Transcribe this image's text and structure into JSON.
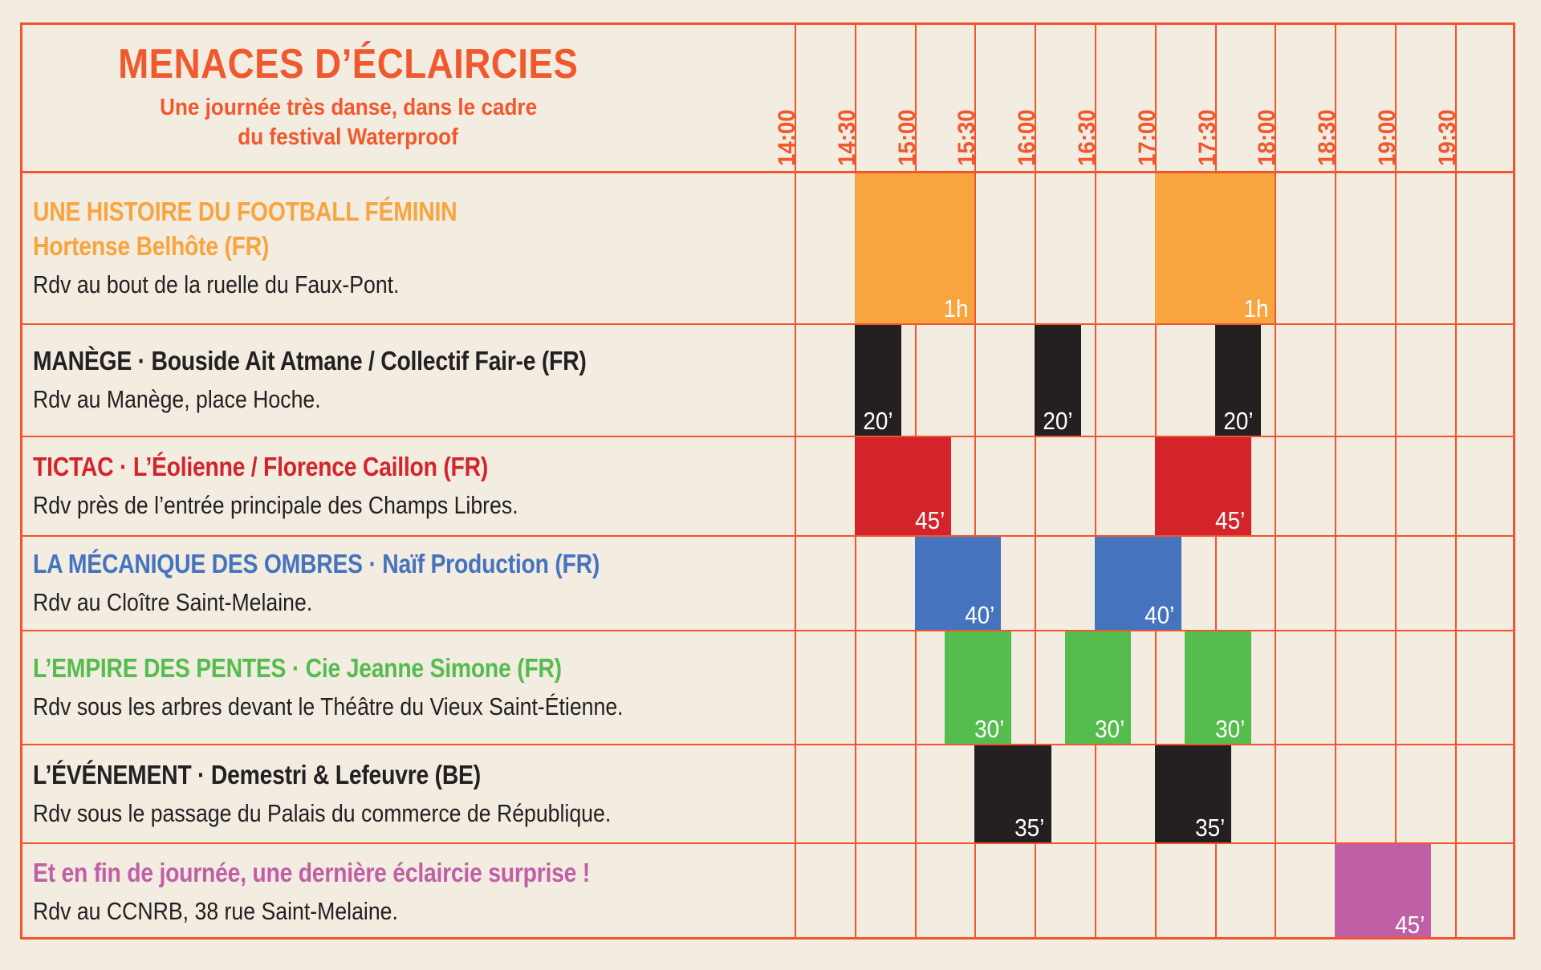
{
  "header": {
    "title": "MENACES D’ÉCLAIRCIES",
    "subtitle_lines": [
      "Une journée très danse, dans le cadre",
      "du festival Waterproof"
    ],
    "times": [
      "14:00",
      "14:30",
      "15:00",
      "15:30",
      "16:00",
      "16:30",
      "17:00",
      "17:30",
      "18:00",
      "18:30",
      "19:00",
      "19:30"
    ]
  },
  "colors": {
    "background": "#F2ECE1",
    "grid": "#F3542C",
    "accent_text": "#F1582D",
    "orange": "#F8A43F",
    "black": "#241F21",
    "red": "#D4242B",
    "blue": "#4673BE",
    "green": "#55BD4E",
    "purple": "#C15FA6",
    "bar_label": "#FFFFFF"
  },
  "rows": [
    {
      "title": "UNE HISTOIRE DU FOOTBALL FÉMININ",
      "title_line2": "Hortense Belhôte (FR)",
      "description": "Rdv au bout de la ruelle du Faux-Pont.",
      "color": "#F8A43F",
      "title_colored": true,
      "events": [
        {
          "start": "14:30",
          "duration_min": 60,
          "label": "1h"
        },
        {
          "start": "17:00",
          "duration_min": 60,
          "label": "1h"
        }
      ]
    },
    {
      "title": "MANÈGE · Bouside Ait Atmane / Collectif Fair-e (FR)",
      "description": "Rdv au Manège, place Hoche.",
      "color": "#241F21",
      "title_colored": true,
      "events": [
        {
          "start": "14:30",
          "duration_min": 20,
          "label": "20’"
        },
        {
          "start": "16:00",
          "duration_min": 20,
          "label": "20’"
        },
        {
          "start": "17:30",
          "duration_min": 20,
          "label": "20’"
        }
      ]
    },
    {
      "title": "TICTAC · L’Éolienne / Florence Caillon (FR)",
      "description": "Rdv près de l’entrée principale des Champs Libres.",
      "color": "#D4242B",
      "title_colored": true,
      "events": [
        {
          "start": "14:30",
          "duration_min": 45,
          "label": "45’"
        },
        {
          "start": "17:00",
          "duration_min": 45,
          "label": "45’"
        }
      ]
    },
    {
      "title": "LA MÉCANIQUE DES OMBRES · Naïf Production (FR)",
      "description": "Rdv au Cloître Saint-Melaine.",
      "color": "#4673BE",
      "title_colored": true,
      "events": [
        {
          "start": "15:00",
          "duration_min": 40,
          "label": "40’"
        },
        {
          "start": "16:30",
          "duration_min": 40,
          "label": "40’"
        }
      ]
    },
    {
      "title": "L’EMPIRE DES PENTES · Cie Jeanne Simone (FR)",
      "description": "Rdv sous les arbres devant le Théâtre du Vieux Saint-Étienne.",
      "color": "#55BD4E",
      "title_colored": true,
      "events": [
        {
          "start": "15:15",
          "duration_min": 30,
          "label": "30’"
        },
        {
          "start": "16:15",
          "duration_min": 30,
          "label": "30’"
        },
        {
          "start": "17:15",
          "duration_min": 30,
          "label": "30’"
        }
      ]
    },
    {
      "title": "L’ÉVÉNEMENT · Demestri & Lefeuvre (BE)",
      "description": "Rdv sous le passage du Palais du commerce de République.",
      "color": "#241F21",
      "title_colored": true,
      "events": [
        {
          "start": "15:30",
          "duration_min": 35,
          "label": "35’"
        },
        {
          "start": "17:00",
          "duration_min": 35,
          "label": "35’"
        }
      ]
    },
    {
      "title": "Et en fin de journée, une dernière éclaircie surprise !",
      "description": "Rdv au CCNRB, 38 rue Saint-Melaine.",
      "color": "#C15FA6",
      "title_colored": true,
      "events": [
        {
          "start": "18:30",
          "duration_min": 45,
          "label": "45’"
        }
      ]
    }
  ],
  "chart_data": {
    "type": "table",
    "title": "MENACES D’ÉCLAIRCIES",
    "subtitle": "Une journée très danse, dans le cadre du festival Waterproof",
    "x_axis": {
      "label": "time",
      "ticks": [
        "14:00",
        "14:30",
        "15:00",
        "15:30",
        "16:00",
        "16:30",
        "17:00",
        "17:30",
        "18:00",
        "18:30",
        "19:00",
        "19:30"
      ]
    },
    "rows": [
      {
        "show": "UNE HISTOIRE DU FOOTBALL FÉMININ — Hortense Belhôte (FR)",
        "meeting_point": "Rdv au bout de la ruelle du Faux-Pont.",
        "performances": [
          {
            "start": "14:30",
            "duration": "1h"
          },
          {
            "start": "17:00",
            "duration": "1h"
          }
        ]
      },
      {
        "show": "MANÈGE · Bouside Ait Atmane / Collectif Fair-e (FR)",
        "meeting_point": "Rdv au Manège, place Hoche.",
        "performances": [
          {
            "start": "14:30",
            "duration": "20’"
          },
          {
            "start": "16:00",
            "duration": "20’"
          },
          {
            "start": "17:30",
            "duration": "20’"
          }
        ]
      },
      {
        "show": "TICTAC · L’Éolienne / Florence Caillon (FR)",
        "meeting_point": "Rdv près de l’entrée principale des Champs Libres.",
        "performances": [
          {
            "start": "14:30",
            "duration": "45’"
          },
          {
            "start": "17:00",
            "duration": "45’"
          }
        ]
      },
      {
        "show": "LA MÉCANIQUE DES OMBRES · Naïf Production (FR)",
        "meeting_point": "Rdv au Cloître Saint-Melaine.",
        "performances": [
          {
            "start": "15:00",
            "duration": "40’"
          },
          {
            "start": "16:30",
            "duration": "40’"
          }
        ]
      },
      {
        "show": "L’EMPIRE DES PENTES · Cie Jeanne Simone (FR)",
        "meeting_point": "Rdv sous les arbres devant le Théâtre du Vieux Saint-Étienne.",
        "performances": [
          {
            "start": "15:15",
            "duration": "30’"
          },
          {
            "start": "16:15",
            "duration": "30’"
          },
          {
            "start": "17:15",
            "duration": "30’"
          }
        ]
      },
      {
        "show": "L’ÉVÉNEMENT · Demestri & Lefeuvre (BE)",
        "meeting_point": "Rdv sous le passage du Palais du commerce de République.",
        "performances": [
          {
            "start": "15:30",
            "duration": "35’"
          },
          {
            "start": "17:00",
            "duration": "35’"
          }
        ]
      },
      {
        "show": "Et en fin de journée, une dernière éclaircie surprise !",
        "meeting_point": "Rdv au CCNRB, 38 rue Saint-Melaine.",
        "performances": [
          {
            "start": "18:30",
            "duration": "45’"
          }
        ]
      }
    ]
  }
}
